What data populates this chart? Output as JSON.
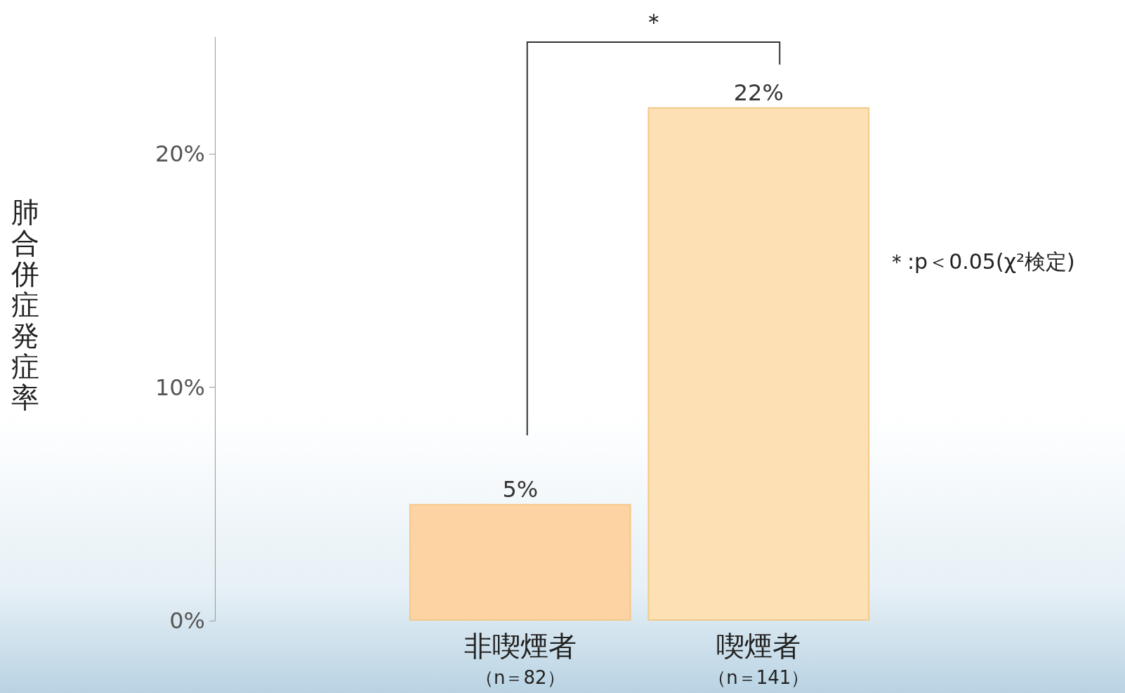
{
  "chart_data": {
    "type": "bar",
    "ylabel": "肺合併症発症率",
    "categories": [
      "非喫煙者",
      "喫煙者"
    ],
    "values": [
      5,
      22
    ],
    "colors": [
      "#fdd3a3",
      "#fde0b4"
    ],
    "value_labels": [
      "5%",
      "22%"
    ],
    "ylim": [
      0,
      25
    ],
    "yticks": [
      {
        "value": 0,
        "label": "0%"
      },
      {
        "value": 10,
        "label": "10%"
      },
      {
        "value": 20,
        "label": "20%"
      }
    ],
    "grid": false,
    "annotations": [
      "＊",
      "＊:p＜0.05(χ²検定)",
      "（n＝82）",
      "（n＝141）"
    ]
  }
}
